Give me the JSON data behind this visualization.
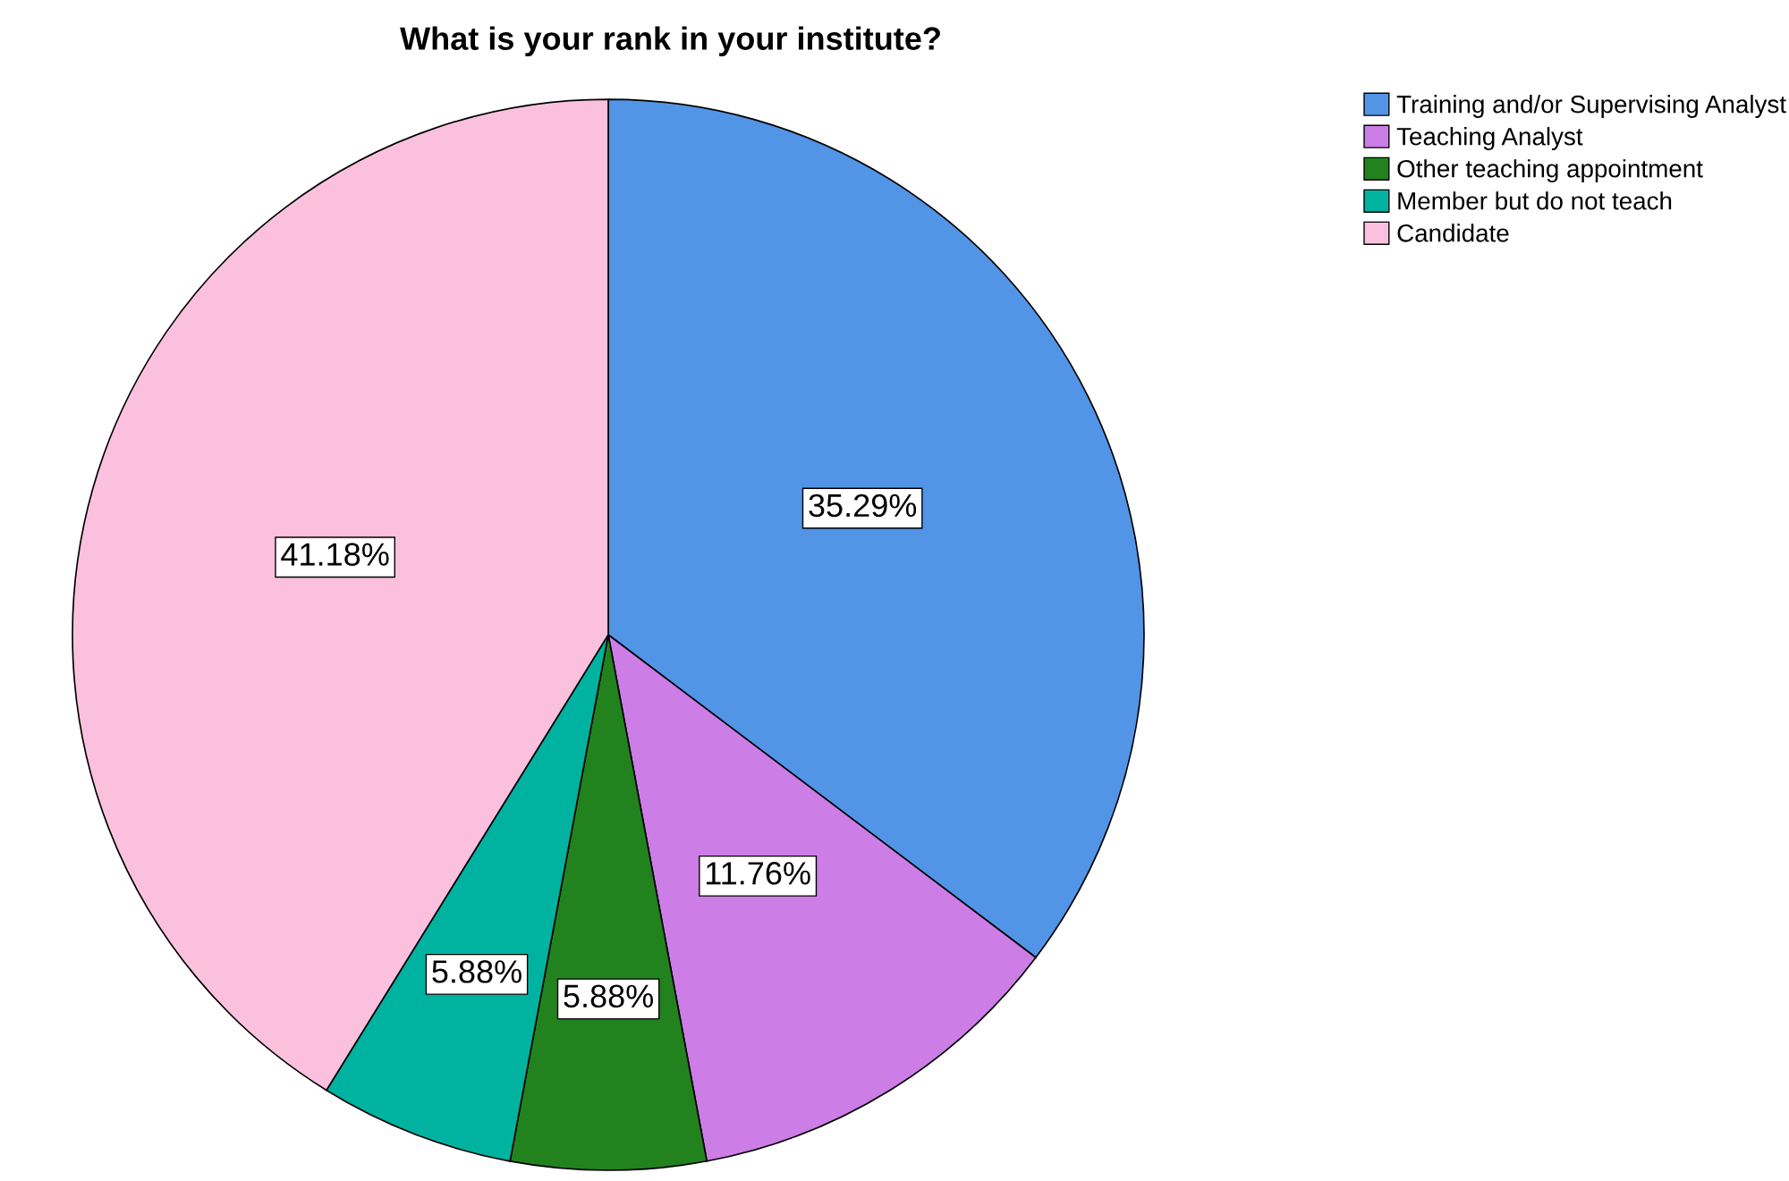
{
  "chart_data": {
    "type": "pie",
    "title": "What is your rank in your institute?",
    "categories": [
      "Training and/or Supervising Analyst",
      "Teaching Analyst",
      "Other teaching appointment",
      "Member but do not teach",
      "Candidate"
    ],
    "values": [
      35.29,
      11.76,
      5.88,
      5.88,
      41.18
    ],
    "colors": [
      "#5294e6",
      "#cc7de6",
      "#22821e",
      "#00b3a0",
      "#fcc0df"
    ],
    "value_labels": [
      "35.29%",
      "11.76%",
      "5.88%",
      "5.88%",
      "41.18%"
    ],
    "legend": "top right"
  }
}
